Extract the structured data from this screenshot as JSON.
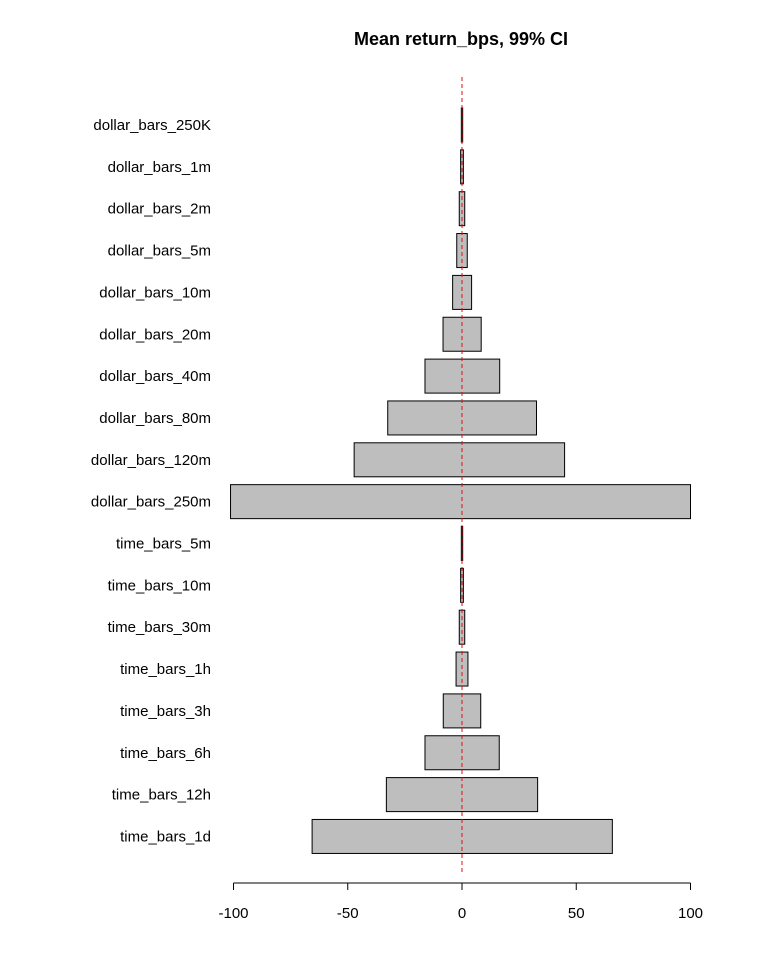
{
  "chart_data": {
    "type": "bar",
    "orientation": "horizontal",
    "title": "Mean return_bps, 99% CI",
    "xlabel": "",
    "ylabel": "",
    "xlim": [
      -100,
      100
    ],
    "xticks": [
      -100,
      -50,
      0,
      50,
      100
    ],
    "tick_labels": [
      "-100",
      "-50",
      "0",
      "50",
      "100"
    ],
    "reference_line": {
      "x": 0,
      "style": "dashed",
      "color": "#dd1111"
    },
    "bar_color": "#bebebe",
    "grid": false,
    "categories": [
      "dollar_bars_250K",
      "dollar_bars_1m",
      "dollar_bars_2m",
      "dollar_bars_5m",
      "dollar_bars_10m",
      "dollar_bars_20m",
      "dollar_bars_40m",
      "dollar_bars_80m",
      "dollar_bars_120m",
      "dollar_bars_250m",
      "time_bars_5m",
      "time_bars_10m",
      "time_bars_30m",
      "time_bars_1h",
      "time_bars_3h",
      "time_bars_6h",
      "time_bars_12h",
      "time_bars_1d"
    ],
    "series": [
      {
        "lower": [
          -0.3,
          -0.6,
          -1.2,
          -2.3,
          -4.1,
          -8.3,
          -16.2,
          -32.5,
          -47.2,
          -101.3,
          -0.3,
          -0.6,
          -1.2,
          -2.6,
          -8.2,
          -16.2,
          -33.1,
          -65.6
        ],
        "upper": [
          0.3,
          0.6,
          1.2,
          2.3,
          4.2,
          8.4,
          16.5,
          32.6,
          44.9,
          100.0,
          0.3,
          0.6,
          1.2,
          2.6,
          8.2,
          16.3,
          33.1,
          65.8
        ]
      }
    ]
  }
}
